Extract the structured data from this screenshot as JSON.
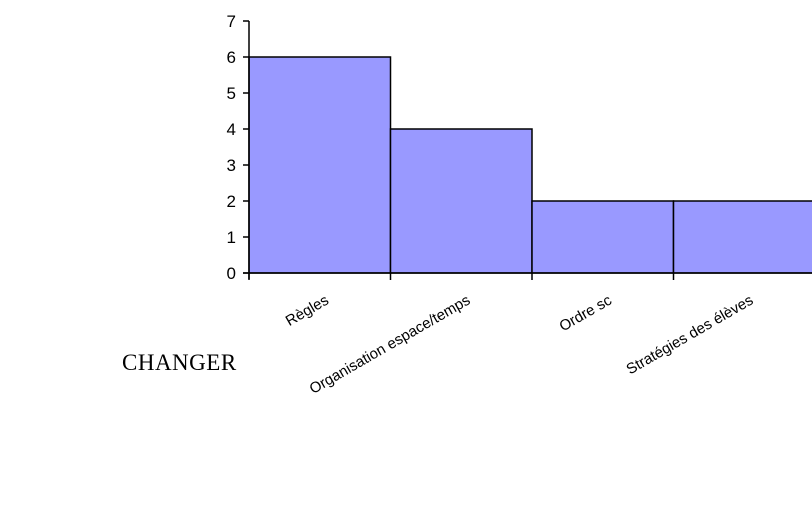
{
  "side_label": "CHANGER",
  "chart_data": {
    "type": "bar",
    "categories": [
      "Règles",
      "Organisation espace/temps",
      "Ordre sc",
      "Stratégies des élèves"
    ],
    "values": [
      6,
      4,
      2,
      2
    ],
    "title": "",
    "xlabel": "",
    "ylabel": "",
    "ylim": [
      0,
      7
    ],
    "yticks": [
      0,
      1,
      2,
      3,
      4,
      5,
      6,
      7
    ],
    "bar_color": "#9999ff",
    "edge_color": "#000000",
    "grid": false,
    "legend": "none",
    "label_rotation": -30
  }
}
